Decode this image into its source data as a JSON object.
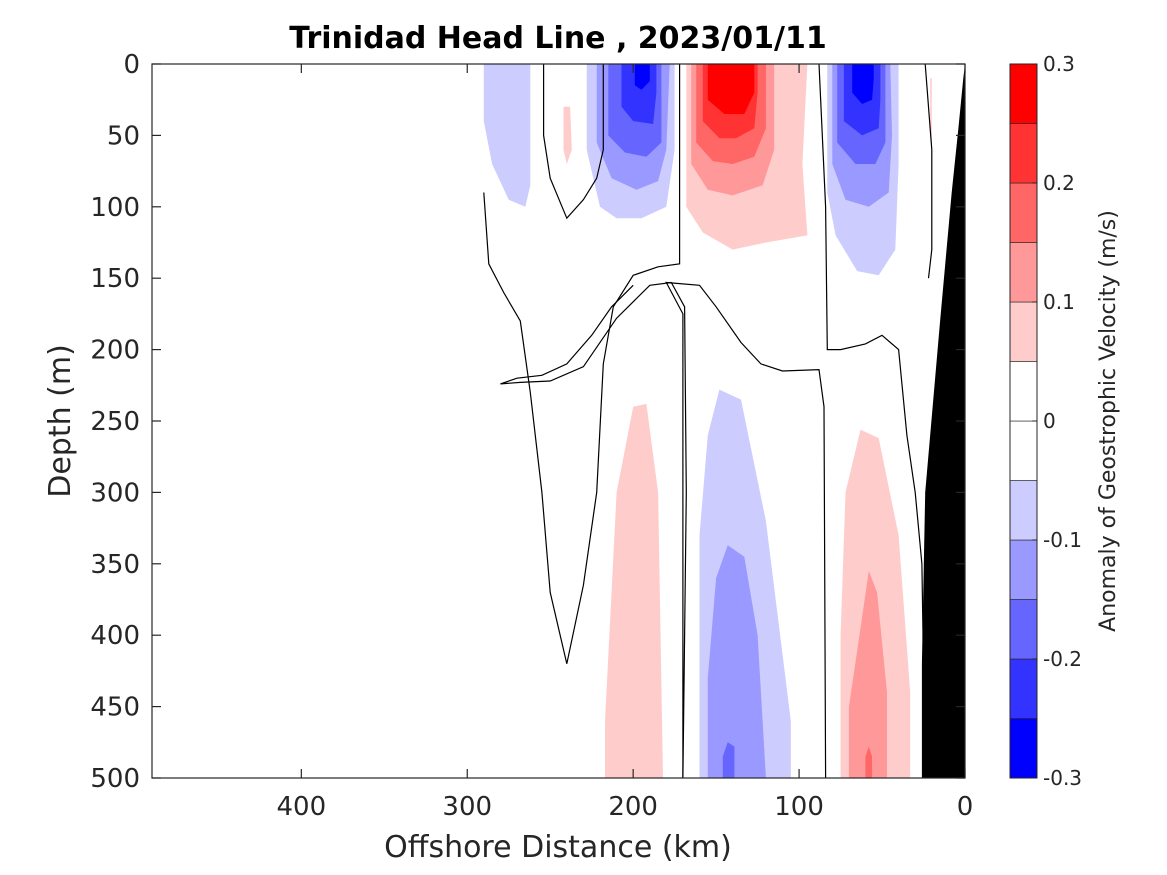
{
  "chart_data": {
    "type": "heatmap",
    "title": "Trinidad Head Line , 2023/01/11",
    "xlabel": "Offshore Distance (km)",
    "ylabel": "Depth (m)",
    "colorbar_label": "Anomaly of Geostrophic Velocity (m/s)",
    "x_axis": {
      "min": 0,
      "max": 490,
      "reversed": true,
      "ticks": [
        400,
        300,
        200,
        100,
        0
      ]
    },
    "y_axis": {
      "min": 0,
      "max": 500,
      "reversed": true,
      "ticks": [
        0,
        50,
        100,
        150,
        200,
        250,
        300,
        350,
        400,
        450,
        500
      ]
    },
    "colorbar": {
      "min": -0.3,
      "max": 0.3,
      "step": 0.05,
      "tick_values": [
        -0.3,
        -0.2,
        -0.1,
        0,
        0.1,
        0.2,
        0.3
      ],
      "tick_labels": [
        "-0.3",
        "-0.2",
        "-0.1",
        "0",
        "0.1",
        "0.2",
        "0.3"
      ],
      "level_colors": [
        {
          "from": -0.3,
          "to": -0.25,
          "color": "#0000ff"
        },
        {
          "from": -0.25,
          "to": -0.2,
          "color": "#3333ff"
        },
        {
          "from": -0.2,
          "to": -0.15,
          "color": "#6666ff"
        },
        {
          "from": -0.15,
          "to": -0.1,
          "color": "#9999ff"
        },
        {
          "from": -0.1,
          "to": -0.05,
          "color": "#ccccff"
        },
        {
          "from": -0.05,
          "to": 0,
          "color": "#ffffff"
        },
        {
          "from": 0,
          "to": 0.05,
          "color": "#ffffff"
        },
        {
          "from": 0.05,
          "to": 0.1,
          "color": "#ffcccc"
        },
        {
          "from": 0.1,
          "to": 0.15,
          "color": "#ff9999"
        },
        {
          "from": 0.15,
          "to": 0.2,
          "color": "#ff6666"
        },
        {
          "from": 0.2,
          "to": 0.25,
          "color": "#ff3333"
        },
        {
          "from": 0.25,
          "to": 0.3,
          "color": "#ff0000"
        }
      ]
    },
    "filled_regions": [
      {
        "name": "v-280-surface",
        "value": -0.075,
        "points": [
          [
            290,
            0
          ],
          [
            290,
            40
          ],
          [
            285,
            70
          ],
          [
            275,
            95
          ],
          [
            265,
            100
          ],
          [
            262,
            85
          ],
          [
            262,
            40
          ],
          [
            262,
            0
          ]
        ]
      },
      {
        "name": "v-240-surface-spot",
        "value": 0.075,
        "points": [
          [
            242,
            30
          ],
          [
            238,
            30
          ],
          [
            237,
            60
          ],
          [
            240,
            70
          ],
          [
            242,
            60
          ]
        ]
      },
      {
        "name": "v-195-surface-1",
        "value": -0.075,
        "points": [
          [
            228,
            0
          ],
          [
            228,
            60
          ],
          [
            220,
            100
          ],
          [
            210,
            108
          ],
          [
            195,
            108
          ],
          [
            180,
            100
          ],
          [
            175,
            60
          ],
          [
            175,
            0
          ]
        ]
      },
      {
        "name": "v-195-surface-2",
        "value": -0.125,
        "points": [
          [
            222,
            0
          ],
          [
            222,
            55
          ],
          [
            213,
            80
          ],
          [
            198,
            88
          ],
          [
            185,
            82
          ],
          [
            180,
            60
          ],
          [
            178,
            0
          ]
        ]
      },
      {
        "name": "v-195-surface-3",
        "value": -0.175,
        "points": [
          [
            215,
            0
          ],
          [
            215,
            50
          ],
          [
            205,
            62
          ],
          [
            192,
            65
          ],
          [
            183,
            55
          ],
          [
            183,
            0
          ]
        ]
      },
      {
        "name": "v-195-surface-4",
        "value": -0.225,
        "points": [
          [
            207,
            0
          ],
          [
            207,
            30
          ],
          [
            200,
            40
          ],
          [
            188,
            42
          ],
          [
            186,
            20
          ],
          [
            186,
            0
          ]
        ]
      },
      {
        "name": "v-195-surface-5",
        "value": -0.275,
        "points": [
          [
            199,
            0
          ],
          [
            199,
            15
          ],
          [
            195,
            18
          ],
          [
            190,
            12
          ],
          [
            190,
            0
          ]
        ]
      },
      {
        "name": "v-140-surface-1",
        "value": 0.075,
        "points": [
          [
            168,
            0
          ],
          [
            168,
            100
          ],
          [
            158,
            118
          ],
          [
            140,
            130
          ],
          [
            120,
            125
          ],
          [
            95,
            120
          ],
          [
            98,
            70
          ],
          [
            95,
            0
          ]
        ]
      },
      {
        "name": "v-140-surface-2",
        "value": 0.125,
        "points": [
          [
            165,
            0
          ],
          [
            165,
            70
          ],
          [
            155,
            88
          ],
          [
            140,
            92
          ],
          [
            122,
            85
          ],
          [
            115,
            60
          ],
          [
            115,
            0
          ]
        ]
      },
      {
        "name": "v-140-surface-3",
        "value": 0.175,
        "points": [
          [
            162,
            0
          ],
          [
            162,
            55
          ],
          [
            152,
            68
          ],
          [
            140,
            70
          ],
          [
            127,
            65
          ],
          [
            120,
            45
          ],
          [
            120,
            0
          ]
        ]
      },
      {
        "name": "v-140-surface-4",
        "value": 0.225,
        "points": [
          [
            158,
            0
          ],
          [
            158,
            40
          ],
          [
            148,
            52
          ],
          [
            138,
            52
          ],
          [
            127,
            45
          ],
          [
            125,
            20
          ],
          [
            125,
            0
          ]
        ]
      },
      {
        "name": "v-140-surface-5",
        "value": 0.275,
        "points": [
          [
            155,
            0
          ],
          [
            155,
            25
          ],
          [
            145,
            35
          ],
          [
            133,
            35
          ],
          [
            127,
            20
          ],
          [
            127,
            0
          ]
        ]
      },
      {
        "name": "v-60-surface-1",
        "value": -0.075,
        "points": [
          [
            83,
            0
          ],
          [
            83,
            90
          ],
          [
            78,
            120
          ],
          [
            65,
            145
          ],
          [
            52,
            148
          ],
          [
            42,
            130
          ],
          [
            40,
            70
          ],
          [
            40,
            0
          ]
        ]
      },
      {
        "name": "v-60-surface-2",
        "value": -0.125,
        "points": [
          [
            80,
            0
          ],
          [
            80,
            70
          ],
          [
            72,
            95
          ],
          [
            58,
            100
          ],
          [
            46,
            90
          ],
          [
            44,
            50
          ],
          [
            45,
            0
          ]
        ]
      },
      {
        "name": "v-60-surface-3",
        "value": -0.175,
        "points": [
          [
            77,
            0
          ],
          [
            77,
            55
          ],
          [
            66,
            70
          ],
          [
            54,
            70
          ],
          [
            48,
            55
          ],
          [
            48,
            0
          ]
        ]
      },
      {
        "name": "v-60-surface-4",
        "value": -0.225,
        "points": [
          [
            73,
            0
          ],
          [
            73,
            40
          ],
          [
            62,
            50
          ],
          [
            52,
            45
          ],
          [
            51,
            25
          ],
          [
            51,
            0
          ]
        ]
      },
      {
        "name": "v-60-surface-5",
        "value": -0.275,
        "points": [
          [
            68,
            0
          ],
          [
            68,
            20
          ],
          [
            62,
            28
          ],
          [
            56,
            25
          ],
          [
            55,
            10
          ],
          [
            55,
            0
          ]
        ]
      },
      {
        "name": "v-200-deep-1",
        "value": 0.075,
        "points": [
          [
            217,
            500
          ],
          [
            217,
            460
          ],
          [
            210,
            300
          ],
          [
            200,
            240
          ],
          [
            192,
            238
          ],
          [
            185,
            300
          ],
          [
            182,
            500
          ]
        ]
      },
      {
        "name": "v-140-deep-1",
        "value": -0.075,
        "points": [
          [
            160,
            500
          ],
          [
            160,
            330
          ],
          [
            155,
            260
          ],
          [
            148,
            228
          ],
          [
            135,
            235
          ],
          [
            120,
            320
          ],
          [
            105,
            460
          ],
          [
            105,
            500
          ]
        ]
      },
      {
        "name": "v-140-deep-2",
        "value": -0.125,
        "points": [
          [
            155,
            500
          ],
          [
            155,
            430
          ],
          [
            150,
            360
          ],
          [
            143,
            337
          ],
          [
            133,
            345
          ],
          [
            125,
            400
          ],
          [
            120,
            500
          ]
        ]
      },
      {
        "name": "v-140-deep-3",
        "value": -0.175,
        "points": [
          [
            146,
            500
          ],
          [
            146,
            485
          ],
          [
            143,
            475
          ],
          [
            139,
            478
          ],
          [
            139,
            500
          ]
        ]
      },
      {
        "name": "v-60-deep-1",
        "value": 0.075,
        "points": [
          [
            75,
            500
          ],
          [
            75,
            400
          ],
          [
            72,
            300
          ],
          [
            63,
            256
          ],
          [
            52,
            262
          ],
          [
            40,
            330
          ],
          [
            33,
            440
          ],
          [
            33,
            500
          ]
        ]
      },
      {
        "name": "v-60-deep-2",
        "value": 0.125,
        "points": [
          [
            70,
            500
          ],
          [
            70,
            450
          ],
          [
            63,
            395
          ],
          [
            58,
            355
          ],
          [
            53,
            370
          ],
          [
            47,
            440
          ],
          [
            47,
            500
          ]
        ]
      },
      {
        "name": "v-60-deep-3",
        "value": 0.175,
        "points": [
          [
            60,
            500
          ],
          [
            60,
            485
          ],
          [
            58,
            478
          ],
          [
            56,
            485
          ],
          [
            56,
            500
          ]
        ]
      },
      {
        "name": "v-20-surface-spot",
        "value": 0.075,
        "points": [
          [
            21,
            10
          ],
          [
            20,
            10
          ],
          [
            20,
            60
          ],
          [
            21,
            50
          ]
        ]
      }
    ],
    "zero_contours": [
      {
        "name": "contour-offshore-loop",
        "points": [
          [
            290,
            90
          ],
          [
            287,
            140
          ],
          [
            278,
            160
          ],
          [
            268,
            180
          ],
          [
            262,
            230
          ],
          [
            255,
            300
          ],
          [
            250,
            370
          ],
          [
            240,
            420
          ],
          [
            230,
            365
          ],
          [
            222,
            300
          ],
          [
            218,
            210
          ],
          [
            212,
            170
          ],
          [
            200,
            148
          ],
          [
            185,
            142
          ],
          [
            172,
            140
          ],
          [
            172,
            0
          ]
        ]
      },
      {
        "name": "contour-surface-1",
        "points": [
          [
            254,
            0
          ],
          [
            254,
            50
          ],
          [
            250,
            80
          ],
          [
            240,
            108
          ],
          [
            230,
            95
          ],
          [
            222,
            80
          ],
          [
            218,
            60
          ],
          [
            218,
            0
          ]
        ]
      },
      {
        "name": "contour-mid-loop",
        "points": [
          [
            170,
            500
          ],
          [
            168,
            300
          ],
          [
            169,
            170
          ],
          [
            177,
            153
          ],
          [
            190,
            155
          ],
          [
            210,
            178
          ],
          [
            230,
            212
          ],
          [
            250,
            222
          ],
          [
            268,
            223
          ],
          [
            280,
            224
          ],
          [
            270,
            220
          ],
          [
            255,
            218
          ],
          [
            240,
            210
          ],
          [
            225,
            190
          ],
          [
            213,
            170
          ],
          [
            200,
            155
          ]
        ]
      },
      {
        "name": "contour-middle",
        "points": [
          [
            170,
            500
          ],
          [
            170,
            175
          ],
          [
            180,
            153
          ],
          [
            160,
            155
          ],
          [
            150,
            170
          ],
          [
            135,
            195
          ],
          [
            123,
            210
          ],
          [
            110,
            215
          ],
          [
            88,
            214
          ],
          [
            85,
            240
          ],
          [
            84,
            500
          ]
        ]
      },
      {
        "name": "contour-surface-2",
        "points": [
          [
            88,
            0
          ],
          [
            84,
            100
          ],
          [
            83,
            200
          ],
          [
            75,
            200
          ],
          [
            60,
            196
          ],
          [
            50,
            190
          ],
          [
            40,
            200
          ],
          [
            35,
            260
          ],
          [
            30,
            300
          ],
          [
            26,
            350
          ],
          [
            24,
            500
          ]
        ]
      },
      {
        "name": "contour-shelf-spot",
        "points": [
          [
            24,
            0
          ],
          [
            20,
            60
          ],
          [
            20,
            130
          ],
          [
            22,
            150
          ]
        ]
      }
    ],
    "bathymetry_mask": {
      "points": [
        [
          0,
          0
        ],
        [
          0,
          500
        ],
        [
          26,
          500
        ],
        [
          26,
          420
        ],
        [
          24,
          300
        ],
        [
          15,
          180
        ],
        [
          8,
          90
        ],
        [
          4,
          45
        ],
        [
          1,
          10
        ]
      ],
      "color": "#000000"
    }
  }
}
